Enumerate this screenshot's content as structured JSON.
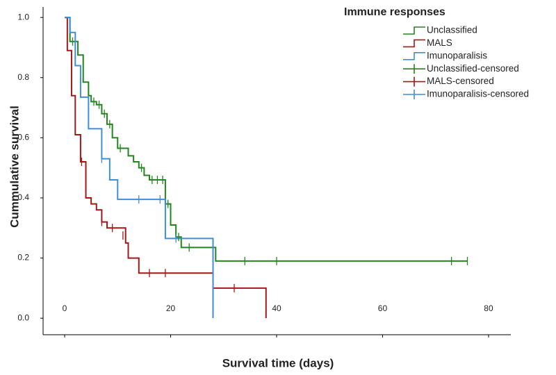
{
  "chart_data": {
    "type": "line",
    "step": "post",
    "xlabel": "Survival time (days)",
    "ylabel": "Cummulative survival",
    "legend_title": "Immune responses",
    "legend_position": "upper right",
    "xlim": [
      -4.07,
      84.2
    ],
    "ylim": [
      -0.055,
      1.035
    ],
    "xticks": [
      0,
      20,
      40,
      60,
      80
    ],
    "yticks": [
      {
        "value": 0,
        "label": "0.0"
      },
      {
        "value": 0.2,
        "label": "0.2"
      },
      {
        "value": 0.4,
        "label": "0.4"
      },
      {
        "value": 0.6,
        "label": "0.6"
      },
      {
        "value": 0.8,
        "label": "0.8"
      },
      {
        "value": 1,
        "label": "1.0"
      }
    ],
    "series": [
      {
        "name": "Unclassified",
        "color": "#23851f",
        "x": [
          0,
          1,
          2.5,
          3.5,
          4.5,
          5,
          6,
          7,
          8,
          9,
          10,
          12,
          13,
          14,
          15,
          16,
          19,
          20,
          21,
          22,
          28.5,
          76
        ],
        "values": [
          1.0,
          0.92,
          0.875,
          0.785,
          0.74,
          0.72,
          0.71,
          0.68,
          0.645,
          0.6,
          0.565,
          0.54,
          0.52,
          0.5,
          0.475,
          0.46,
          0.38,
          0.31,
          0.27,
          0.235,
          0.19,
          0.19
        ]
      },
      {
        "name": "MALS",
        "color": "#a51717",
        "x": [
          0,
          0.5,
          1.3,
          2,
          3,
          4,
          5,
          6,
          7,
          8,
          11.5,
          12,
          14,
          28,
          38
        ],
        "values": [
          1.0,
          0.89,
          0.74,
          0.61,
          0.52,
          0.4,
          0.38,
          0.36,
          0.32,
          0.3,
          0.25,
          0.2,
          0.15,
          0.1,
          0
        ]
      },
      {
        "name": "Imunoparalisis",
        "color": "#3d8fdb",
        "x": [
          0,
          1,
          2,
          3,
          4.5,
          7,
          8.5,
          10,
          19,
          28
        ],
        "values": [
          1.0,
          0.95,
          0.84,
          0.735,
          0.63,
          0.53,
          0.46,
          0.395,
          0.265,
          0
        ]
      }
    ],
    "censored": [
      {
        "name": "Unclassified-censored",
        "color": "#23851f",
        "x": [
          1.5,
          5.5,
          6.5,
          7.5,
          8.5,
          10.5,
          14.5,
          16.5,
          17.5,
          18.5,
          19.5,
          21.5,
          23.5,
          34,
          40,
          73,
          76
        ],
        "values": [
          0.92,
          0.72,
          0.71,
          0.68,
          0.645,
          0.565,
          0.5,
          0.46,
          0.46,
          0.46,
          0.38,
          0.27,
          0.235,
          0.19,
          0.19,
          0.19,
          0.19
        ]
      },
      {
        "name": "MALS-censored",
        "color": "#a51717",
        "x": [
          3.2,
          7,
          9,
          11,
          16,
          19,
          32
        ],
        "values": [
          0.52,
          0.32,
          0.3,
          0.275,
          0.15,
          0.15,
          0.1
        ]
      },
      {
        "name": "Imunoparalisis-censored",
        "color": "#3d8fdb",
        "x": [
          7,
          14,
          18,
          21
        ],
        "values": [
          0.53,
          0.395,
          0.395,
          0.265
        ]
      }
    ]
  }
}
